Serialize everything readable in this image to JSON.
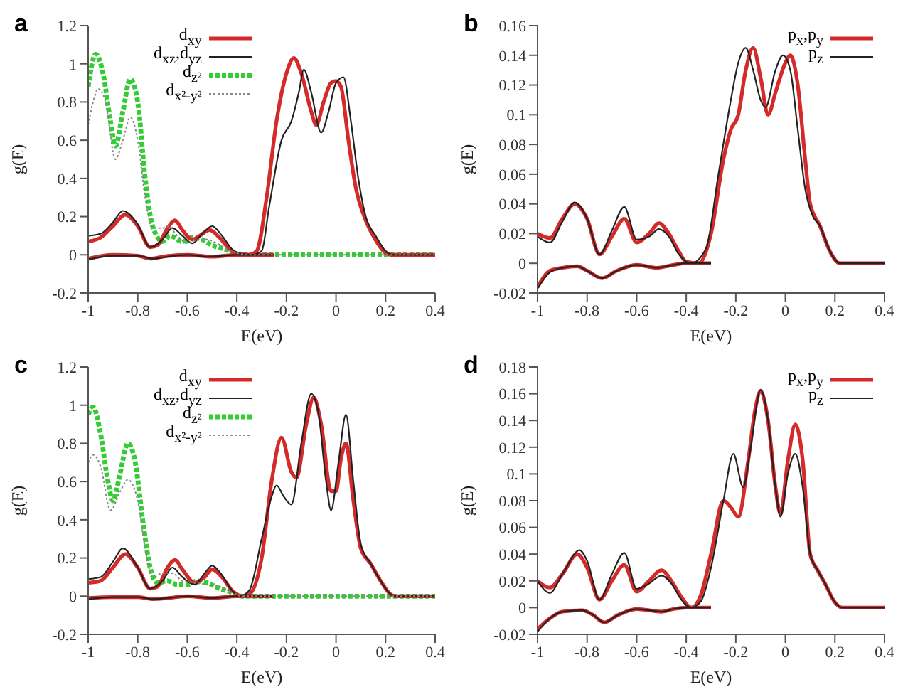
{
  "chart_data": [
    {
      "type": "line",
      "title": "a",
      "xlabel": "E(eV)",
      "ylabel": "g(E)",
      "xlim": [
        -1,
        0.4
      ],
      "xticks": [
        -1,
        -0.8,
        -0.6,
        -0.4,
        -0.2,
        0,
        0.2,
        0.4
      ],
      "ylim": [
        -0.2,
        1.2
      ],
      "yticks": [
        -0.2,
        0,
        0.2,
        0.4,
        0.6,
        0.8,
        1,
        1.2
      ],
      "grid": false,
      "legend": "top",
      "marker": "none",
      "series": [
        {
          "name": "d$_{xy}$",
          "color": "#d42a2a",
          "line_style": "solid",
          "x": [
            -1,
            -0.95,
            -0.9,
            -0.85,
            -0.8,
            -0.75,
            -0.72,
            -0.68,
            -0.65,
            -0.62,
            -0.58,
            -0.55,
            -0.51,
            -0.47,
            -0.43,
            -0.4,
            -0.35,
            -0.32,
            -0.28,
            -0.24,
            -0.2,
            -0.17,
            -0.14,
            -0.1,
            -0.08,
            -0.05,
            -0.02,
            0,
            0.02,
            0.05,
            0.08,
            0.12,
            0.15,
            0.2,
            0.22,
            0.4
          ],
          "values": [
            0.07,
            0.09,
            0.15,
            0.21,
            0.15,
            0.04,
            0.05,
            0.14,
            0.18,
            0.13,
            0.08,
            0.1,
            0.13,
            0.09,
            0.03,
            0.005,
            0,
            0.02,
            0.3,
            0.7,
            0.95,
            1.03,
            0.95,
            0.75,
            0.68,
            0.8,
            0.9,
            0.91,
            0.88,
            0.6,
            0.35,
            0.18,
            0.1,
            0.01,
            0,
            0
          ]
        },
        {
          "name": "d$_{xz}$,d$_{yz}$",
          "color": "#222222",
          "line_style": "solid",
          "x": [
            -1,
            -0.95,
            -0.9,
            -0.86,
            -0.8,
            -0.75,
            -0.7,
            -0.66,
            -0.62,
            -0.58,
            -0.54,
            -0.5,
            -0.46,
            -0.42,
            -0.38,
            -0.34,
            -0.3,
            -0.27,
            -0.22,
            -0.18,
            -0.15,
            -0.13,
            -0.1,
            -0.06,
            -0.03,
            0,
            0.03,
            0.06,
            0.09,
            0.12,
            0.16,
            0.2,
            0.23,
            0.4
          ],
          "values": [
            0.1,
            0.11,
            0.17,
            0.23,
            0.16,
            0.04,
            0.08,
            0.14,
            0.1,
            0.06,
            0.11,
            0.15,
            0.1,
            0.03,
            0.005,
            0,
            0.02,
            0.25,
            0.6,
            0.7,
            0.85,
            0.97,
            0.85,
            0.64,
            0.75,
            0.9,
            0.93,
            0.7,
            0.4,
            0.2,
            0.1,
            0.02,
            0,
            0
          ]
        },
        {
          "name": "d$_{z²}$",
          "color": "#33cc33",
          "line_style": "dashed",
          "x": [
            -1,
            -0.97,
            -0.94,
            -0.91,
            -0.89,
            -0.86,
            -0.83,
            -0.8,
            -0.77,
            -0.74,
            -0.7,
            -0.67,
            -0.62,
            -0.58,
            -0.54,
            -0.5,
            -0.45,
            -0.4,
            -0.35,
            0.4
          ],
          "values": [
            0.88,
            1.05,
            0.95,
            0.7,
            0.57,
            0.75,
            0.92,
            0.8,
            0.4,
            0.15,
            0.07,
            0.1,
            0.07,
            0.09,
            0.08,
            0.05,
            0.03,
            0.005,
            0,
            0
          ]
        },
        {
          "name": "d$_{x²-y²}$",
          "color": "#888888",
          "line_style": "dotted",
          "x": [
            -1,
            -0.98,
            -0.96,
            -0.93,
            -0.89,
            -0.86,
            -0.83,
            -0.8,
            -0.77,
            -0.74,
            -0.7,
            -0.68,
            -0.64,
            -0.6,
            -0.56,
            -0.52,
            -0.48,
            -0.44,
            -0.4,
            -0.35,
            0.4
          ],
          "values": [
            0.68,
            0.8,
            0.87,
            0.8,
            0.5,
            0.6,
            0.72,
            0.6,
            0.3,
            0.14,
            0.14,
            0.15,
            0.1,
            0.06,
            0.08,
            0.08,
            0.06,
            0.03,
            0.01,
            0,
            0
          ]
        },
        {
          "color": "#d42a2a",
          "line_style": "solid",
          "x": [
            -1,
            -0.9,
            -0.8,
            -0.75,
            -0.7,
            -0.6,
            -0.5,
            -0.4,
            -0.25
          ],
          "values": [
            -0.02,
            0,
            -0.005,
            -0.02,
            -0.01,
            0,
            -0.01,
            0,
            0
          ]
        },
        {
          "color": "#222222",
          "line_style": "solid",
          "x": [
            -1,
            -0.9,
            -0.8,
            -0.74,
            -0.68,
            -0.6,
            -0.52,
            -0.4,
            -0.25
          ],
          "values": [
            -0.025,
            -0.005,
            -0.005,
            -0.02,
            -0.01,
            0,
            -0.01,
            0,
            0
          ]
        }
      ]
    },
    {
      "type": "line",
      "title": "b",
      "xlabel": "E(eV)",
      "ylabel": "g(E)",
      "xlim": [
        -1,
        0.4
      ],
      "xticks": [
        -1,
        -0.8,
        -0.6,
        -0.4,
        -0.2,
        0,
        0.2,
        0.4
      ],
      "ylim": [
        -0.02,
        0.16
      ],
      "yticks": [
        -0.02,
        0,
        0.02,
        0.04,
        0.06,
        0.08,
        0.1,
        0.12,
        0.14,
        0.16
      ],
      "grid": false,
      "legend": "top right",
      "marker": "none",
      "series": [
        {
          "name": "p$_{x}$,p$_{y}$",
          "color": "#d42a2a",
          "line_style": "solid",
          "x": [
            -1,
            -0.95,
            -0.9,
            -0.85,
            -0.8,
            -0.75,
            -0.7,
            -0.65,
            -0.6,
            -0.55,
            -0.51,
            -0.47,
            -0.43,
            -0.4,
            -0.35,
            -0.3,
            -0.25,
            -0.22,
            -0.19,
            -0.16,
            -0.13,
            -0.1,
            -0.07,
            -0.04,
            0,
            0.02,
            0.05,
            0.08,
            0.1,
            0.14,
            0.18,
            0.22,
            0.4
          ],
          "values": [
            0.02,
            0.017,
            0.03,
            0.04,
            0.03,
            0.006,
            0.018,
            0.03,
            0.014,
            0.02,
            0.027,
            0.02,
            0.008,
            0.001,
            0,
            0.02,
            0.07,
            0.09,
            0.1,
            0.13,
            0.145,
            0.125,
            0.1,
            0.115,
            0.135,
            0.14,
            0.12,
            0.07,
            0.04,
            0.025,
            0.008,
            0,
            0
          ]
        },
        {
          "name": "p$_{z}$",
          "color": "#222222",
          "line_style": "solid",
          "x": [
            -1,
            -0.95,
            -0.9,
            -0.85,
            -0.8,
            -0.75,
            -0.7,
            -0.65,
            -0.6,
            -0.55,
            -0.51,
            -0.47,
            -0.43,
            -0.38,
            -0.32,
            -0.27,
            -0.22,
            -0.19,
            -0.16,
            -0.13,
            -0.1,
            -0.08,
            -0.04,
            -0.01,
            0.02,
            0.05,
            0.08,
            0.11,
            0.14,
            0.18,
            0.22,
            0.4
          ],
          "values": [
            0.018,
            0.014,
            0.028,
            0.041,
            0.03,
            0.006,
            0.022,
            0.038,
            0.016,
            0.018,
            0.023,
            0.018,
            0.006,
            0,
            0.01,
            0.06,
            0.11,
            0.135,
            0.145,
            0.13,
            0.11,
            0.105,
            0.13,
            0.14,
            0.13,
            0.09,
            0.05,
            0.032,
            0.025,
            0.008,
            0,
            0
          ]
        },
        {
          "color": "#d42a2a",
          "line_style": "solid",
          "x": [
            -1,
            -0.95,
            -0.9,
            -0.84,
            -0.8,
            -0.74,
            -0.68,
            -0.6,
            -0.52,
            -0.45,
            -0.4,
            -0.3
          ],
          "values": [
            -0.016,
            -0.005,
            -0.003,
            -0.002,
            -0.005,
            -0.01,
            -0.005,
            -0.001,
            -0.003,
            -0.001,
            0,
            0
          ]
        },
        {
          "color": "#222222",
          "line_style": "solid",
          "x": [
            -1,
            -0.95,
            -0.9,
            -0.84,
            -0.8,
            -0.74,
            -0.68,
            -0.6,
            -0.52,
            -0.45,
            -0.4,
            -0.3
          ],
          "values": [
            -0.017,
            -0.006,
            -0.003,
            -0.002,
            -0.005,
            -0.01,
            -0.005,
            -0.001,
            -0.003,
            -0.001,
            0,
            0
          ]
        }
      ]
    },
    {
      "type": "line",
      "title": "c",
      "xlabel": "E(eV)",
      "ylabel": "g(E)",
      "xlim": [
        -1,
        0.4
      ],
      "xticks": [
        -1,
        -0.8,
        -0.6,
        -0.4,
        -0.2,
        0,
        0.2,
        0.4
      ],
      "ylim": [
        -0.2,
        1.2
      ],
      "yticks": [
        -0.2,
        0,
        0.2,
        0.4,
        0.6,
        0.8,
        1,
        1.2
      ],
      "grid": false,
      "legend": "top",
      "marker": "none",
      "series": [
        {
          "name": "d$_{xy}$",
          "color": "#d42a2a",
          "line_style": "solid",
          "x": [
            -1,
            -0.95,
            -0.9,
            -0.85,
            -0.8,
            -0.75,
            -0.72,
            -0.68,
            -0.65,
            -0.62,
            -0.57,
            -0.53,
            -0.5,
            -0.46,
            -0.42,
            -0.38,
            -0.35,
            -0.3,
            -0.26,
            -0.22,
            -0.18,
            -0.16,
            -0.12,
            -0.09,
            -0.06,
            -0.02,
            0,
            0.02,
            0.04,
            0.07,
            0.1,
            0.14,
            0.18,
            0.22,
            0.24,
            0.4
          ],
          "values": [
            0.07,
            0.08,
            0.15,
            0.22,
            0.15,
            0.04,
            0.05,
            0.15,
            0.19,
            0.14,
            0.07,
            0.1,
            0.14,
            0.1,
            0.03,
            0,
            0.01,
            0.2,
            0.6,
            0.83,
            0.65,
            0.62,
            0.9,
            1.04,
            0.9,
            0.55,
            0.55,
            0.72,
            0.8,
            0.5,
            0.25,
            0.17,
            0.08,
            0.01,
            0,
            0
          ]
        },
        {
          "name": "d$_{xz}$,d$_{yz}$",
          "color": "#222222",
          "line_style": "solid",
          "x": [
            -1,
            -0.95,
            -0.9,
            -0.86,
            -0.8,
            -0.75,
            -0.7,
            -0.66,
            -0.62,
            -0.57,
            -0.53,
            -0.5,
            -0.46,
            -0.42,
            -0.39,
            -0.35,
            -0.3,
            -0.26,
            -0.24,
            -0.21,
            -0.18,
            -0.14,
            -0.1,
            -0.07,
            -0.04,
            -0.02,
            0.01,
            0.04,
            0.07,
            0.1,
            0.14,
            0.18,
            0.22,
            0.24,
            0.4
          ],
          "values": [
            0.09,
            0.1,
            0.18,
            0.25,
            0.15,
            0.04,
            0.08,
            0.15,
            0.1,
            0.06,
            0.12,
            0.16,
            0.11,
            0.03,
            0,
            0.03,
            0.3,
            0.52,
            0.58,
            0.52,
            0.48,
            0.8,
            1.06,
            0.95,
            0.6,
            0.45,
            0.7,
            0.95,
            0.6,
            0.27,
            0.17,
            0.08,
            0.01,
            0,
            0
          ]
        },
        {
          "name": "d$_{z²}$",
          "color": "#33cc33",
          "line_style": "dashed",
          "x": [
            -1,
            -0.98,
            -0.95,
            -0.92,
            -0.9,
            -0.87,
            -0.84,
            -0.81,
            -0.78,
            -0.75,
            -0.72,
            -0.68,
            -0.64,
            -0.6,
            -0.56,
            -0.52,
            -0.47,
            -0.42,
            -0.38,
            0.4
          ],
          "values": [
            0.95,
            0.99,
            0.85,
            0.6,
            0.5,
            0.65,
            0.8,
            0.7,
            0.4,
            0.15,
            0.07,
            0.08,
            0.06,
            0.06,
            0.08,
            0.07,
            0.04,
            0.02,
            0,
            0
          ]
        },
        {
          "name": "d$_{x²-y²}$",
          "color": "#888888",
          "line_style": "dotted",
          "x": [
            -1,
            -0.98,
            -0.95,
            -0.91,
            -0.87,
            -0.84,
            -0.8,
            -0.77,
            -0.74,
            -0.7,
            -0.66,
            -0.62,
            -0.57,
            -0.52,
            -0.47,
            -0.42,
            -0.38,
            0.4
          ],
          "values": [
            0.7,
            0.74,
            0.68,
            0.45,
            0.55,
            0.61,
            0.5,
            0.25,
            0.1,
            0.12,
            0.12,
            0.08,
            0.07,
            0.06,
            0.05,
            0.02,
            0,
            0
          ]
        },
        {
          "color": "#d42a2a",
          "line_style": "solid",
          "x": [
            -1,
            -0.9,
            -0.8,
            -0.74,
            -0.68,
            -0.6,
            -0.5,
            -0.4,
            -0.25
          ],
          "values": [
            -0.01,
            -0.005,
            -0.005,
            -0.015,
            -0.01,
            0,
            -0.01,
            0,
            0
          ]
        },
        {
          "color": "#222222",
          "line_style": "solid",
          "x": [
            -1,
            -0.9,
            -0.8,
            -0.74,
            -0.68,
            -0.6,
            -0.5,
            -0.4,
            -0.25
          ],
          "values": [
            -0.015,
            -0.005,
            -0.005,
            -0.015,
            -0.01,
            0,
            -0.01,
            0,
            0
          ]
        }
      ]
    },
    {
      "type": "line",
      "title": "d",
      "xlabel": "E(eV)",
      "ylabel": "g(E)",
      "xlim": [
        -1,
        0.4
      ],
      "xticks": [
        -1,
        -0.8,
        -0.6,
        -0.4,
        -0.2,
        0,
        0.2,
        0.4
      ],
      "ylim": [
        -0.02,
        0.18
      ],
      "yticks": [
        -0.02,
        0,
        0.02,
        0.04,
        0.06,
        0.08,
        0.1,
        0.12,
        0.14,
        0.16,
        0.18
      ],
      "grid": false,
      "legend": "top right",
      "marker": "none",
      "series": [
        {
          "name": "p$_{x}$,p$_{y}$",
          "color": "#d42a2a",
          "line_style": "solid",
          "x": [
            -1,
            -0.95,
            -0.9,
            -0.84,
            -0.8,
            -0.75,
            -0.7,
            -0.65,
            -0.6,
            -0.55,
            -0.5,
            -0.46,
            -0.42,
            -0.38,
            -0.34,
            -0.3,
            -0.25,
            -0.22,
            -0.19,
            -0.15,
            -0.12,
            -0.1,
            -0.07,
            -0.04,
            -0.02,
            0.01,
            0.04,
            0.07,
            0.1,
            0.13,
            0.16,
            0.2,
            0.23,
            0.4
          ],
          "values": [
            0.02,
            0.015,
            0.025,
            0.04,
            0.03,
            0.006,
            0.02,
            0.032,
            0.012,
            0.02,
            0.028,
            0.02,
            0.008,
            0,
            0.01,
            0.04,
            0.08,
            0.075,
            0.068,
            0.11,
            0.15,
            0.162,
            0.14,
            0.09,
            0.07,
            0.11,
            0.137,
            0.11,
            0.04,
            0.028,
            0.018,
            0.004,
            0,
            0
          ]
        },
        {
          "name": "p$_{z}$",
          "color": "#222222",
          "line_style": "solid",
          "x": [
            -1,
            -0.95,
            -0.9,
            -0.83,
            -0.8,
            -0.75,
            -0.7,
            -0.65,
            -0.6,
            -0.55,
            -0.5,
            -0.46,
            -0.42,
            -0.38,
            -0.34,
            -0.3,
            -0.25,
            -0.21,
            -0.17,
            -0.14,
            -0.1,
            -0.07,
            -0.04,
            -0.02,
            0.01,
            0.04,
            0.07,
            0.1,
            0.13,
            0.16,
            0.2,
            0.23,
            0.4
          ],
          "values": [
            0.02,
            0.011,
            0.025,
            0.043,
            0.035,
            0.006,
            0.025,
            0.041,
            0.014,
            0.018,
            0.024,
            0.018,
            0.006,
            0,
            0.005,
            0.03,
            0.08,
            0.115,
            0.09,
            0.12,
            0.163,
            0.14,
            0.09,
            0.068,
            0.1,
            0.115,
            0.09,
            0.04,
            0.028,
            0.018,
            0.004,
            0,
            0
          ]
        },
        {
          "color": "#d42a2a",
          "line_style": "solid",
          "x": [
            -1,
            -0.95,
            -0.9,
            -0.82,
            -0.78,
            -0.73,
            -0.68,
            -0.6,
            -0.5,
            -0.45,
            -0.4,
            -0.3
          ],
          "values": [
            -0.016,
            -0.008,
            -0.003,
            -0.002,
            -0.005,
            -0.011,
            -0.006,
            -0.001,
            -0.003,
            -0.001,
            0,
            0
          ]
        },
        {
          "color": "#222222",
          "line_style": "solid",
          "x": [
            -1,
            -0.95,
            -0.9,
            -0.82,
            -0.78,
            -0.73,
            -0.68,
            -0.6,
            -0.5,
            -0.45,
            -0.4,
            -0.3
          ],
          "values": [
            -0.018,
            -0.008,
            -0.003,
            -0.002,
            -0.005,
            -0.011,
            -0.006,
            -0.001,
            -0.003,
            -0.001,
            0,
            0
          ]
        }
      ]
    }
  ]
}
